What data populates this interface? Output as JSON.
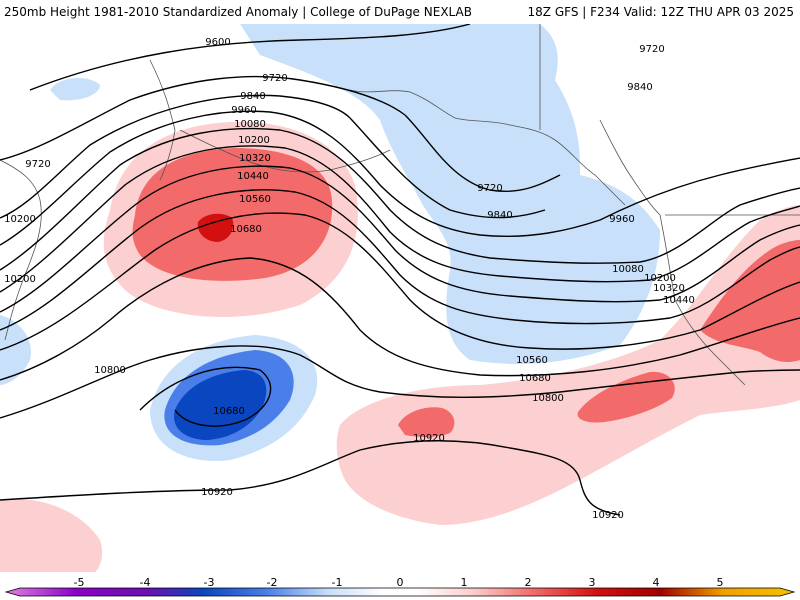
{
  "header": {
    "left_text": "250mb Height 1981-2010 Standardized Anomaly | College of DuPage NEXLAB",
    "right_text": "18Z GFS | F234 Valid: 12Z THU APR 03 2025"
  },
  "colors": {
    "anom_-5": "#e080e0",
    "anom_-4": "#8a00c8",
    "anom_-3": "#0a46c0",
    "anom_-2": "#4a7ee8",
    "anom_-1": "#c8e0fa",
    "anom_0": "#ffffff",
    "anom_1": "#fcd0d0",
    "anom_2": "#f26a6a",
    "anom_3": "#d21010",
    "anom_4": "#a00000",
    "anom_5": "#f0a000",
    "contour": "#000000",
    "coast": "#555555"
  },
  "colorbar_ticks": [
    "-5",
    "-4",
    "-3",
    "-2",
    "-1",
    "0",
    "1",
    "2",
    "3",
    "4",
    "5"
  ],
  "contour_labels": [
    "9600",
    "9720",
    "9840",
    "9960",
    "10080",
    "10200",
    "10320",
    "10440",
    "10560",
    "10680",
    "9720",
    "9720",
    "9840",
    "9720",
    "9840",
    "10200",
    "10800",
    "10680",
    "10920",
    "10920",
    "9720",
    "9840",
    "9960",
    "10080",
    "10200",
    "10320",
    "10440",
    "10560",
    "10680",
    "10800",
    "10920"
  ]
}
